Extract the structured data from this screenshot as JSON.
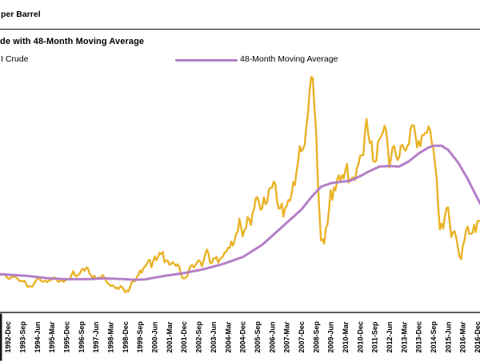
{
  "header": {
    "unit_label": "per Barrel"
  },
  "chart": {
    "title": "de with 48-Month Moving Average",
    "legend": [
      {
        "label": "I Crude",
        "color": "#EAB226"
      },
      {
        "label": "48-Month Moving Average",
        "color": "#B47EC7"
      }
    ]
  },
  "chart_data": {
    "type": "line",
    "title": "de with 48-Month Moving Average",
    "x_start": "1992-Jul",
    "x_frequency": "monthly",
    "x_tick_labels": [
      "1992-Dec",
      "1993-Sep",
      "1994-Jun",
      "1995-Mar",
      "1995-Dec",
      "1996-Sep",
      "1997-Jun",
      "1998-Mar",
      "1998-Dec",
      "1999-Sep",
      "2000-Jun",
      "2001-Mar",
      "2001-Dec",
      "2002-Sep",
      "2003-Jun",
      "2004-Mar",
      "2004-Dec",
      "2005-Sep",
      "2006-Jun",
      "2007-Mar",
      "2007-Dec",
      "2008-Sep",
      "2009-Jun",
      "2010-Mar",
      "2010-Dec",
      "2011-Sep",
      "2012-Jun",
      "2013-Mar",
      "2013-Dec",
      "2014-Sep",
      "2015-Jun",
      "2016-Mar",
      "2016-Dec"
    ],
    "first_tick_month_index": 5,
    "months_per_tick": 9,
    "ylim": [
      0,
      139
    ],
    "grid": false,
    "legend_position": "top-left",
    "axis_color": "#595959",
    "series": [
      {
        "name": "I Crude",
        "color": "#EAB226",
        "stroke_width": 2.4,
        "monthly_values": [
          21.8,
          21.3,
          21.9,
          21.7,
          20.3,
          19.4,
          19.0,
          20.1,
          20.3,
          20.3,
          19.9,
          19.1,
          17.9,
          18.0,
          17.5,
          18.1,
          16.7,
          14.5,
          15.0,
          14.8,
          14.7,
          16.4,
          17.9,
          19.1,
          19.7,
          18.4,
          17.5,
          17.7,
          18.1,
          17.2,
          18.0,
          18.5,
          18.6,
          19.9,
          19.7,
          18.4,
          17.3,
          18.0,
          18.2,
          17.4,
          18.0,
          19.0,
          18.9,
          19.1,
          21.4,
          23.5,
          21.2,
          20.4,
          21.3,
          22.0,
          24.0,
          24.9,
          23.7,
          25.4,
          25.2,
          22.2,
          21.0,
          19.7,
          20.8,
          19.2,
          19.6,
          19.9,
          19.8,
          21.3,
          20.2,
          18.3,
          16.7,
          16.1,
          15.0,
          15.4,
          14.9,
          13.7,
          14.1,
          13.4,
          15.0,
          14.4,
          13.0,
          11.3,
          12.5,
          12.0,
          14.7,
          17.3,
          17.7,
          17.9,
          20.1,
          21.3,
          23.9,
          22.6,
          25.0,
          26.1,
          27.2,
          29.4,
          29.9,
          25.7,
          28.8,
          31.8,
          29.7,
          31.3,
          33.9,
          33.1,
          34.4,
          28.5,
          29.6,
          29.6,
          27.2,
          27.5,
          28.6,
          27.6,
          26.4,
          27.4,
          26.2,
          22.2,
          19.7,
          19.3,
          19.7,
          20.7,
          24.4,
          26.3,
          27.0,
          25.5,
          26.9,
          28.4,
          29.7,
          28.9,
          26.3,
          29.4,
          33.0,
          35.8,
          33.5,
          28.2,
          28.1,
          30.7,
          30.8,
          31.6,
          28.3,
          30.3,
          31.1,
          32.2,
          34.3,
          34.7,
          36.8,
          36.7,
          40.3,
          38.0,
          40.8,
          44.9,
          46.0,
          53.3,
          48.5,
          43.3,
          46.8,
          48.0,
          54.3,
          53.0,
          49.8,
          56.3,
          59.0,
          65.0,
          65.6,
          62.4,
          58.3,
          59.4,
          65.5,
          61.6,
          62.9,
          69.7,
          70.9,
          71.0,
          74.4,
          73.1,
          63.9,
          59.1,
          59.4,
          62.0,
          54.5,
          59.3,
          60.6,
          64.0,
          63.5,
          67.5,
          74.2,
          72.4,
          79.9,
          86.2,
          94.6,
          91.7,
          92.9,
          95.4,
          105.6,
          112.6,
          125.4,
          133.9,
          133.4,
          116.6,
          103.9,
          76.7,
          57.4,
          41.0,
          41.7,
          39.2,
          48.0,
          49.8,
          59.2,
          69.7,
          64.1,
          71.1,
          69.5,
          75.8,
          78.1,
          74.3,
          78.2,
          76.4,
          81.2,
          84.5,
          73.8,
          75.4,
          76.4,
          76.8,
          75.3,
          81.9,
          84.3,
          89.2,
          89.4,
          89.6,
          102.9,
          110.0,
          101.3,
          96.3,
          97.3,
          86.3,
          85.6,
          86.4,
          97.2,
          98.6,
          100.3,
          102.3,
          106.2,
          103.3,
          94.7,
          82.4,
          87.9,
          94.1,
          94.6,
          89.6,
          86.7,
          88.2,
          94.8,
          95.3,
          93.0,
          92.0,
          94.8,
          95.8,
          104.7,
          106.6,
          106.3,
          100.5,
          93.9,
          97.6,
          94.6,
          100.8,
          100.8,
          102.1,
          102.2,
          105.8,
          103.6,
          96.5,
          93.2,
          84.4,
          75.8,
          59.3,
          47.2,
          50.6,
          47.8,
          54.5,
          59.3,
          59.8,
          51.2,
          42.9,
          45.5,
          46.2,
          42.4,
          37.2,
          31.7,
          30.3,
          37.6,
          40.8,
          46.7,
          48.8,
          44.7,
          44.7,
          45.2,
          49.8,
          45.7,
          52.0
        ]
      },
      {
        "name": "48-Month Moving Average",
        "color": "#B47EC7",
        "stroke_width": 3,
        "anchor_points": [
          [
            0,
            21.7
          ],
          [
            5,
            21.5
          ],
          [
            17,
            20.8
          ],
          [
            29,
            19.5
          ],
          [
            41,
            18.9
          ],
          [
            53,
            18.9
          ],
          [
            65,
            19.4
          ],
          [
            77,
            18.9
          ],
          [
            83,
            18.6
          ],
          [
            89,
            18.8
          ],
          [
            101,
            20.8
          ],
          [
            113,
            22.4
          ],
          [
            125,
            24.6
          ],
          [
            137,
            27.6
          ],
          [
            149,
            31.5
          ],
          [
            161,
            38.5
          ],
          [
            173,
            48.5
          ],
          [
            185,
            58.5
          ],
          [
            191,
            65.5
          ],
          [
            197,
            71.5
          ],
          [
            203,
            73.5
          ],
          [
            209,
            74.3
          ],
          [
            215,
            75.0
          ],
          [
            221,
            77.5
          ],
          [
            227,
            80.5
          ],
          [
            233,
            83.0
          ],
          [
            239,
            83.3
          ],
          [
            245,
            83.0
          ],
          [
            251,
            86.0
          ],
          [
            257,
            90.5
          ],
          [
            263,
            93.8
          ],
          [
            266,
            94.8
          ],
          [
            271,
            94.8
          ],
          [
            275,
            92.5
          ],
          [
            281,
            85.5
          ],
          [
            287,
            76.0
          ],
          [
            293,
            65.0
          ],
          [
            296,
            59.5
          ]
        ]
      }
    ]
  }
}
